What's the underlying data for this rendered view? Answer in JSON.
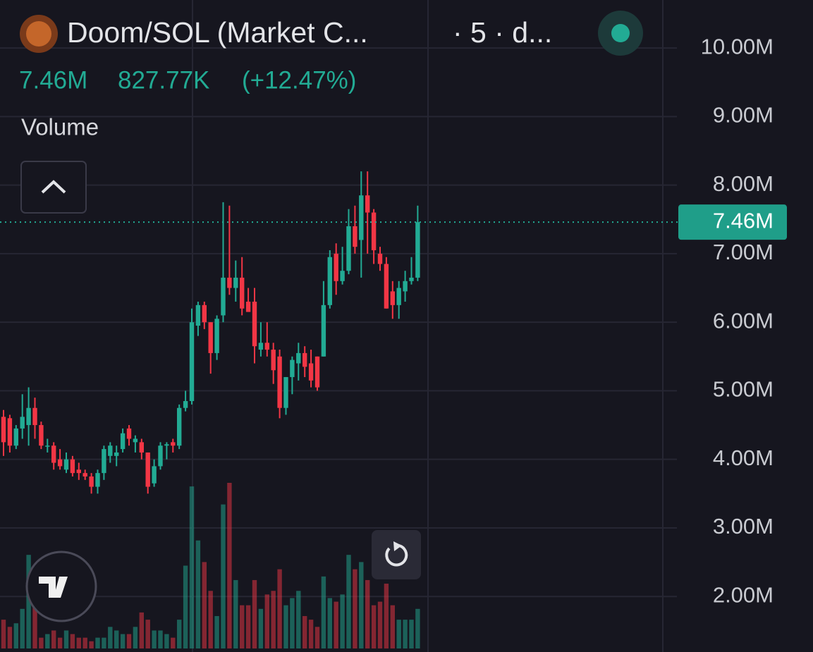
{
  "header": {
    "title": "Doom/SOL (Market C...",
    "interval": "· 5 · d...",
    "price": "7.46M",
    "change": "827.77K",
    "change_pct": "(+12.47%)"
  },
  "chart_data": {
    "type": "candlestick",
    "up_color": "#22ab94",
    "down_color": "#f23645",
    "ylim": [
      1.19,
      10.7
    ],
    "yticks": [
      {
        "value": 2,
        "label": "2.00M"
      },
      {
        "value": 3,
        "label": "3.00M"
      },
      {
        "value": 4,
        "label": "4.00M"
      },
      {
        "value": 5,
        "label": "5.00M"
      },
      {
        "value": 6,
        "label": "6.00M"
      },
      {
        "value": 7,
        "label": "7.00M"
      },
      {
        "value": 8,
        "label": "8.00M"
      },
      {
        "value": 9,
        "label": "9.00M"
      },
      {
        "value": 10,
        "label": "10.00M"
      }
    ],
    "grid": true,
    "last_price": {
      "value": 7.46,
      "label": "7.46M"
    },
    "open": [
      4.62,
      4.6,
      4.2,
      4.45,
      4.5,
      4.75,
      4.5,
      4.2,
      4.2,
      4.0,
      3.85,
      4.0,
      3.85,
      3.8,
      3.75,
      3.6,
      3.8,
      4.05,
      4.05,
      4.15,
      4.45,
      4.25,
      4.25,
      4.1,
      3.65,
      3.9,
      4.2,
      4.25,
      4.2,
      4.75,
      4.85,
      5.95,
      6.25,
      6.0,
      5.55,
      6.1,
      6.65,
      6.5,
      6.65,
      6.3,
      6.3,
      5.6,
      5.7,
      5.6,
      5.5,
      4.75,
      5.2,
      5.4,
      5.55,
      5.4,
      5.5,
      5.5,
      6.25,
      7.0,
      6.6,
      6.75,
      7.4,
      7.2,
      7.85,
      7.6,
      7.0,
      6.85,
      6.45,
      6.25,
      6.45,
      6.6,
      6.65
    ],
    "high": [
      4.72,
      4.65,
      4.5,
      4.95,
      5.05,
      4.9,
      4.55,
      4.3,
      4.25,
      4.15,
      4.1,
      4.05,
      3.95,
      3.85,
      3.8,
      3.85,
      4.2,
      4.25,
      4.2,
      4.45,
      4.5,
      4.35,
      4.3,
      4.1,
      4.0,
      4.25,
      4.25,
      4.3,
      4.8,
      5.0,
      6.2,
      6.3,
      6.3,
      6.0,
      6.1,
      7.75,
      7.7,
      6.9,
      6.95,
      6.5,
      6.5,
      6.0,
      6.0,
      5.7,
      5.6,
      5.2,
      5.5,
      5.7,
      5.65,
      5.6,
      5.5,
      6.6,
      7.05,
      7.15,
      7.1,
      7.65,
      7.7,
      8.2,
      8.2,
      7.65,
      7.1,
      6.95,
      6.6,
      6.6,
      6.75,
      6.95,
      7.7
    ],
    "low": [
      4.05,
      4.1,
      4.15,
      4.3,
      4.2,
      4.3,
      4.15,
      4.1,
      3.85,
      3.85,
      3.8,
      3.75,
      3.7,
      3.7,
      3.5,
      3.5,
      3.7,
      3.95,
      3.9,
      4.1,
      4.2,
      4.1,
      4.0,
      3.5,
      3.6,
      3.85,
      4.0,
      4.1,
      4.15,
      4.7,
      4.8,
      5.8,
      5.9,
      5.25,
      5.45,
      6.0,
      6.4,
      6.3,
      6.1,
      6.15,
      5.4,
      5.5,
      5.5,
      5.1,
      4.6,
      4.65,
      4.95,
      5.15,
      5.2,
      5.05,
      5.0,
      5.5,
      6.2,
      6.4,
      6.55,
      6.7,
      7.0,
      6.65,
      7.0,
      6.85,
      6.75,
      6.2,
      6.05,
      6.05,
      6.3,
      6.55,
      6.6
    ],
    "close": [
      4.25,
      4.2,
      4.45,
      4.62,
      4.75,
      4.5,
      4.2,
      4.2,
      3.95,
      3.9,
      4.0,
      3.8,
      3.8,
      3.75,
      3.6,
      3.8,
      4.15,
      4.2,
      4.1,
      4.38,
      4.3,
      4.3,
      4.1,
      3.6,
      3.9,
      4.2,
      4.22,
      4.2,
      4.75,
      4.85,
      6.0,
      6.25,
      6.0,
      5.55,
      6.05,
      6.65,
      6.5,
      6.65,
      6.2,
      6.15,
      5.65,
      5.7,
      5.6,
      5.3,
      4.75,
      5.2,
      5.45,
      5.55,
      5.35,
      5.15,
      5.05,
      6.25,
      6.95,
      6.6,
      6.75,
      7.4,
      7.1,
      7.85,
      7.6,
      7.05,
      6.85,
      6.2,
      6.25,
      6.5,
      6.6,
      6.65,
      7.46
    ],
    "volume": {
      "label": "Volume",
      "values": [
        40,
        30,
        35,
        55,
        130,
        65,
        15,
        20,
        25,
        15,
        25,
        20,
        15,
        15,
        10,
        15,
        15,
        30,
        25,
        20,
        20,
        30,
        50,
        40,
        25,
        25,
        20,
        15,
        40,
        115,
        225,
        150,
        120,
        80,
        45,
        200,
        230,
        95,
        60,
        60,
        95,
        55,
        75,
        80,
        110,
        60,
        70,
        80,
        45,
        40,
        30,
        100,
        70,
        65,
        75,
        130,
        110,
        120,
        95,
        60,
        65,
        90,
        60,
        40,
        40,
        40,
        55
      ]
    }
  }
}
